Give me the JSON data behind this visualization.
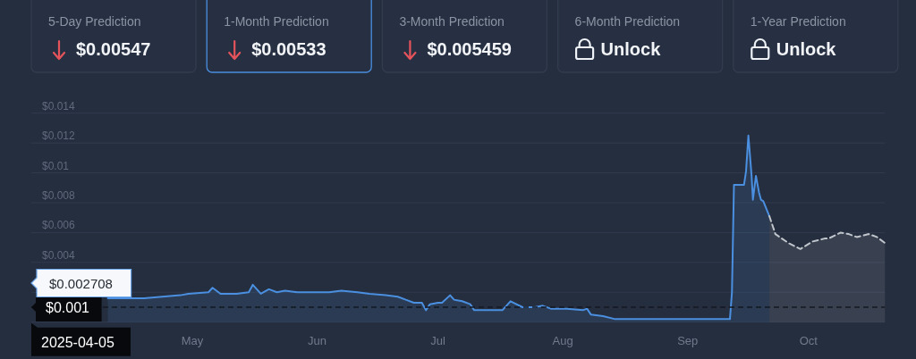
{
  "chart_data": [
    {
      "type": "other",
      "categories": [
        "5-Day Prediction",
        "1-Month Prediction",
        "3-Month Prediction",
        "6-Month Prediction",
        "1-Year Prediction"
      ],
      "value_labels": [
        "$0.00547",
        "$0.00533",
        "$0.005459",
        "Unlock",
        "Unlock"
      ],
      "colors": [
        "#323c4e",
        "#4a8fe0",
        "#323c4e",
        "#323c4e",
        "#323c4e"
      ]
    },
    {
      "type": "area",
      "xlim": [
        "2025-04-05",
        "2025-11-03"
      ],
      "xticks": [
        {
          "value": "2025-05-15",
          "label": "May"
        },
        {
          "value": "2025-06-15",
          "label": "Jun"
        },
        {
          "value": "2025-07-15",
          "label": "Jul"
        },
        {
          "value": "2025-08-15",
          "label": "Aug"
        },
        {
          "value": "2025-09-15",
          "label": "Sep"
        },
        {
          "value": "2025-10-15",
          "label": "Oct"
        }
      ],
      "ylim": [
        0,
        0.014
      ],
      "yticks": [
        {
          "value": 0,
          "label": null
        },
        {
          "value": 0.002,
          "label": null
        },
        {
          "value": 0.004,
          "label": "$0.004"
        },
        {
          "value": 0.006,
          "label": "$0.006"
        },
        {
          "value": 0.008,
          "label": "$0.008"
        },
        {
          "value": 0.01,
          "label": "$0.01"
        },
        {
          "value": 0.012,
          "label": "$0.012"
        },
        {
          "value": 0.014,
          "label": "$0.014"
        }
      ],
      "grid": "y",
      "series": [
        {
          "color": "#4a8fe0",
          "x": [
            "2025-04-24",
            "2025-05-03",
            "2025-05-12",
            "2025-05-14",
            "2025-05-19",
            "2025-05-20",
            "2025-05-22",
            "2025-05-26",
            "2025-05-29",
            "2025-05-30",
            "2025-06-01",
            "2025-06-03",
            "2025-06-05",
            "2025-06-07",
            "2025-06-10",
            "2025-06-18",
            "2025-06-21",
            "2025-06-25",
            "2025-06-28",
            "2025-07-02",
            "2025-07-05",
            "2025-07-07",
            "2025-07-09",
            "2025-07-11",
            "2025-07-12",
            "2025-07-13",
            "2025-07-15",
            "2025-07-16",
            "2025-07-18",
            "2025-07-19",
            "2025-07-21",
            "2025-07-23",
            "2025-07-24",
            "2025-07-27",
            "2025-07-31",
            "2025-08-02",
            "2025-08-05",
            "2025-08-08",
            "2025-08-10",
            "2025-08-12",
            "2025-08-16",
            "2025-08-20",
            "2025-08-21",
            "2025-08-22",
            "2025-08-25",
            "2025-08-28",
            "2025-08-31",
            "2025-09-25T12:00",
            "2025-09-26T00:00",
            "2025-09-26T12:00",
            "2025-09-29T00:00",
            "2025-09-29T12:00",
            "2025-09-30T02:00",
            "2025-09-30T21:00",
            "2025-10-01T05:00",
            "2025-10-01T23:00",
            "2025-10-02T17:00",
            "2025-10-03T05:00",
            "2025-10-03T19:00",
            "2025-10-05T07:00"
          ],
          "values": [
            0.0016,
            0.0016,
            0.0018,
            0.0019,
            0.002,
            0.0023,
            0.0019,
            0.0019,
            0.002,
            0.0025,
            0.0019,
            0.0022,
            0.002,
            0.0021,
            0.002,
            0.002,
            0.0021,
            0.002,
            0.0019,
            0.0018,
            0.0017,
            0.0015,
            0.0013,
            0.0013,
            0.0008,
            0.0012,
            0.0013,
            0.0013,
            0.0018,
            0.0015,
            0.0014,
            0.0012,
            0.0008,
            0.0008,
            0.0008,
            0.0014,
            0.001,
            0.001,
            0.0011,
            0.0009,
            0.0009,
            0.0008,
            0.0009,
            0.0005,
            0.0004,
            0.0002,
            0.0002,
            0.0002,
            0.002,
            0.0092,
            0.0092,
            0.0101,
            0.0125,
            0.0098,
            0.0082,
            0.0098,
            0.0087,
            0.0082,
            0.0081,
            0.0071
          ]
        },
        {
          "color": "#c0c5cc",
          "line_style": "dashed",
          "x": [
            "2025-10-05T07:00",
            "2025-10-06T19:00",
            "2025-10-10",
            "2025-10-13",
            "2025-10-16",
            "2025-10-19",
            "2025-10-20",
            "2025-10-23",
            "2025-10-25",
            "2025-10-27",
            "2025-10-30",
            "2025-11-01",
            "2025-11-03"
          ],
          "values": [
            0.0071,
            0.0059,
            0.0053,
            0.0049,
            0.0054,
            0.0056,
            0.0056,
            0.006,
            0.0059,
            0.0057,
            0.0059,
            0.0057,
            0.0053
          ]
        }
      ],
      "ref_lines": [
        {
          "axis": "y",
          "value": 0.001,
          "label": "$0.001",
          "line_style": "dashed",
          "color": "#141922"
        }
      ],
      "annotations": [
        "$0.002708",
        "2025-04-05"
      ]
    }
  ]
}
